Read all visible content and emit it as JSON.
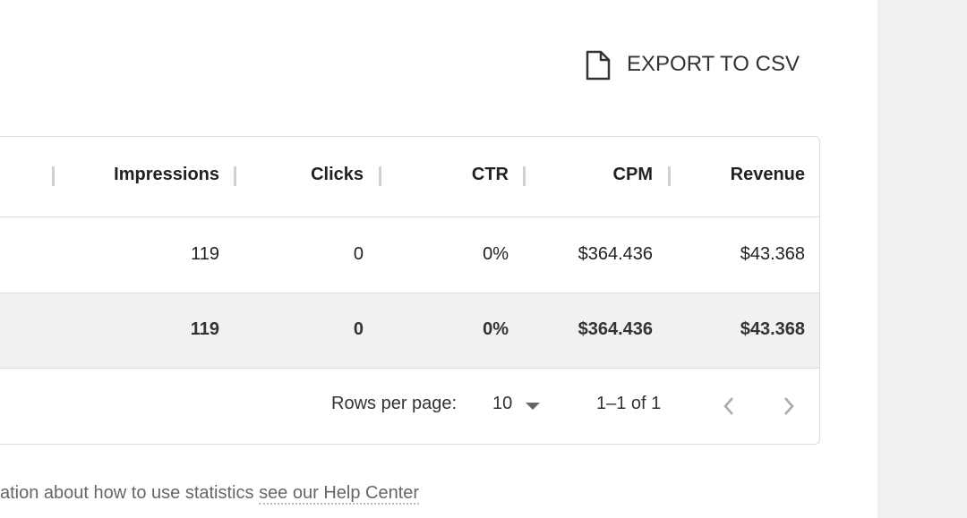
{
  "export_button": {
    "label": "EXPORT TO CSV"
  },
  "table": {
    "columns": [
      "Impressions",
      "Clicks",
      "CTR",
      "CPM",
      "Revenue"
    ],
    "rows": [
      [
        "119",
        "0",
        "0%",
        "$364.436",
        "$43.368"
      ]
    ],
    "total": [
      "119",
      "0",
      "0%",
      "$364.436",
      "$43.368"
    ],
    "footer": {
      "rows_per_page_label": "Rows per page:",
      "rows_per_page": "10",
      "range": "1–1 of 1"
    }
  },
  "help_text": {
    "text": "ation about how to use statistics",
    "link": "see our Help Center"
  }
}
